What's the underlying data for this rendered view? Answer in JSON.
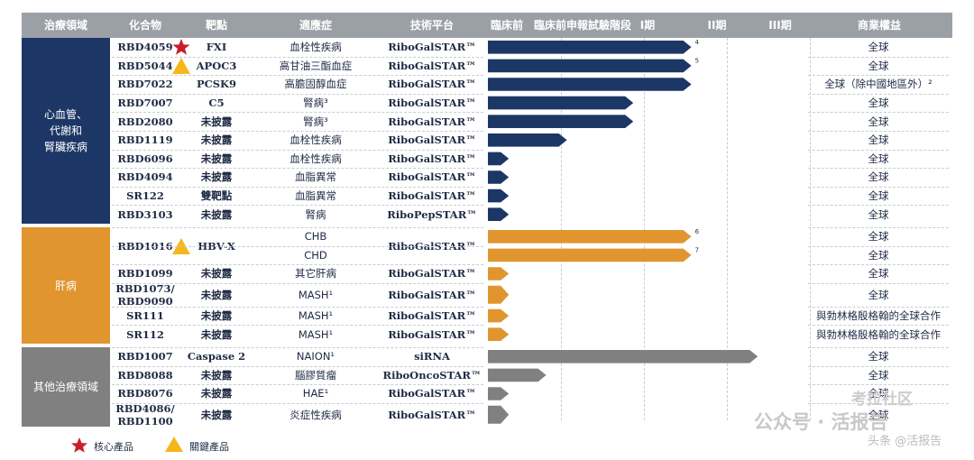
{
  "headers": {
    "area": "治療領域",
    "compound": "化合物",
    "target": "靶點",
    "indication": "適應症",
    "platform": "技術平台",
    "preclinical": "臨床前",
    "ind_stage": "臨床前申報試驗階段",
    "phase1": "I期",
    "phase2": "II期",
    "phase3": "III期",
    "rights": "商業權益"
  },
  "areas": [
    {
      "label": "心血管、\n代謝和\n腎臟疾病",
      "color": "#1c3766"
    },
    {
      "label": "肝病",
      "color": "#e0952f"
    },
    {
      "label": "其他治療領域",
      "color": "#808080"
    }
  ],
  "rows": [
    {
      "compound": "RBD4059",
      "target": "FXI",
      "indication": "血栓性疾病",
      "platform": "RiboGalSTAR™",
      "rights": "全球",
      "stage": 2.55,
      "area": 0,
      "icon": "star",
      "note": "4"
    },
    {
      "compound": "RBD5044",
      "target": "APOC3",
      "indication": "高甘油三酯血症",
      "platform": "RiboGalSTAR™",
      "rights": "全球",
      "stage": 2.55,
      "area": 0,
      "icon": "triangle",
      "note": "5"
    },
    {
      "compound": "RBD7022",
      "target": "PCSK9",
      "indication": "高膽固醇血症",
      "platform": "RiboGalSTAR™",
      "rights": "全球（除中國地區外）²",
      "stage": 2.55,
      "area": 0
    },
    {
      "compound": "RBD7007",
      "target": "C5",
      "indication": "腎病³",
      "platform": "RiboGalSTAR™",
      "rights": "全球",
      "stage": 1.85,
      "area": 0
    },
    {
      "compound": "RBD2080",
      "target": "未披露",
      "indication": "腎病³",
      "platform": "RiboGalSTAR™",
      "rights": "全球",
      "stage": 1.85,
      "area": 0
    },
    {
      "compound": "RBD1119",
      "target": "未披露",
      "indication": "血栓性疾病",
      "platform": "RiboGalSTAR™",
      "rights": "全球",
      "stage": 1.05,
      "area": 0
    },
    {
      "compound": "RBD6096",
      "target": "未披露",
      "indication": "血栓性疾病",
      "platform": "RiboGalSTAR™",
      "rights": "全球",
      "stage": 0.35,
      "area": 0
    },
    {
      "compound": "RBD4094",
      "target": "未披露",
      "indication": "血脂異常",
      "platform": "RiboGalSTAR™",
      "rights": "全球",
      "stage": 0.35,
      "area": 0
    },
    {
      "compound": "SR122",
      "target": "雙靶點",
      "indication": "血脂異常",
      "platform": "RiboGalSTAR™",
      "rights": "全球",
      "stage": 0.35,
      "area": 0
    },
    {
      "compound": "RBD3103",
      "target": "未披露",
      "indication": "腎病",
      "platform": "RiboPepSTAR™",
      "rights": "全球",
      "stage": 0.35,
      "area": 0
    },
    {
      "compound": "RBD1016",
      "target": "HBV-X",
      "indication": "CHB",
      "platform": "RiboGalSTAR™",
      "rights": "全球",
      "stage": 2.55,
      "area": 1,
      "icon": "triangle",
      "note": "6"
    },
    {
      "compound": "",
      "target": "",
      "indication": "CHD",
      "platform": "",
      "rights": "全球",
      "stage": 2.55,
      "area": 1,
      "note": "7"
    },
    {
      "compound": "RBD1099",
      "target": "未披露",
      "indication": "其它肝病",
      "platform": "RiboGalSTAR™",
      "rights": "全球",
      "stage": 0.35,
      "area": 1
    },
    {
      "compound": "RBD1073/\nRBD9090",
      "target": "未披露",
      "indication": "MASH¹",
      "platform": "RiboGalSTAR™",
      "rights": "全球",
      "stage": 0.35,
      "area": 1
    },
    {
      "compound": "SR111",
      "target": "未披露",
      "indication": "MASH¹",
      "platform": "RiboGalSTAR™",
      "rights": "與勃林格殷格翰的全球合作",
      "stage": 0.35,
      "area": 1
    },
    {
      "compound": "SR112",
      "target": "未披露",
      "indication": "MASH¹",
      "platform": "RiboGalSTAR™",
      "rights": "與勃林格殷格翰的全球合作",
      "stage": 0.35,
      "area": 1
    },
    {
      "compound": "RBD1007",
      "target": "Caspase 2",
      "indication": "NAION¹",
      "platform": "siRNA",
      "rights": "全球",
      "stage": 3.35,
      "area": 2
    },
    {
      "compound": "RBD8088",
      "target": "未披露",
      "indication": "腦膠質瘤",
      "platform": "RiboOncoSTAR™",
      "rights": "全球",
      "stage": 0.8,
      "area": 2
    },
    {
      "compound": "RBD8076",
      "target": "未披露",
      "indication": "HAE¹",
      "platform": "RiboGalSTAR™",
      "rights": "全球",
      "stage": 0.35,
      "area": 2
    },
    {
      "compound": "RBD4086/\nRBD1100",
      "target": "未披露",
      "indication": "炎症性疾病",
      "platform": "RiboGalSTAR™",
      "rights": "全球",
      "stage": 0.35,
      "area": 2
    }
  ],
  "legend": {
    "star_label": "核心產品",
    "triangle_label": "關鍵產品",
    "star_color": "#c8202b",
    "triangle_color": "#f4b81c"
  },
  "watermark": {
    "main": "公众号 · 活报告",
    "corner": "头条 @活报告",
    "community": "考拉社区"
  }
}
